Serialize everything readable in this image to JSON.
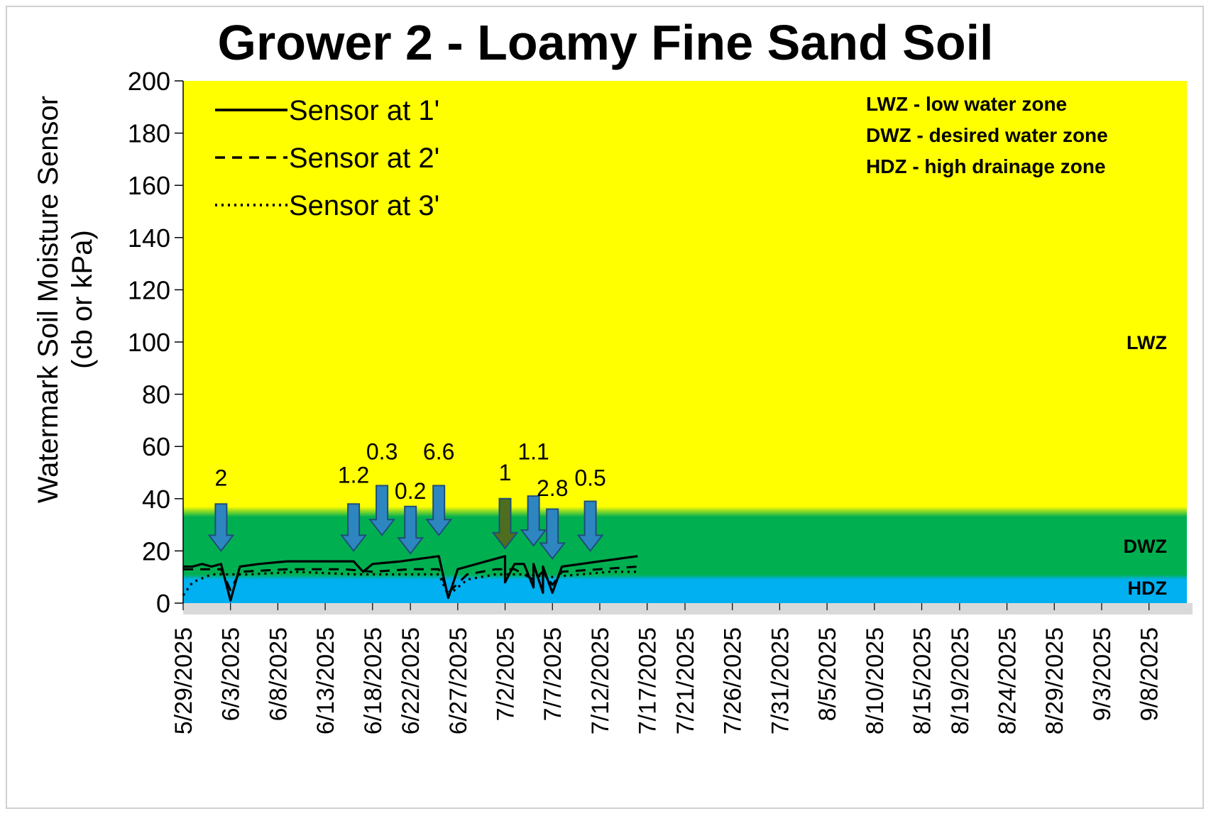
{
  "chart_data": {
    "type": "line",
    "title": "Grower 2 - Loamy Fine Sand Soil",
    "ylabel": "Watermark Soil Moisture Sensor\n(cb or kPa)",
    "ylim": [
      0,
      200
    ],
    "yticks": [
      0,
      20,
      40,
      60,
      80,
      100,
      120,
      140,
      160,
      180,
      200
    ],
    "xlim": [
      "5/29/2025",
      "9/12/2025"
    ],
    "xticks": [
      "5/29/2025",
      "6/3/2025",
      "6/8/2025",
      "6/13/2025",
      "6/18/2025",
      "6/22/2025",
      "6/27/2025",
      "7/2/2025",
      "7/7/2025",
      "7/12/2025",
      "7/17/2025",
      "7/21/2025",
      "7/26/2025",
      "7/31/2025",
      "8/5/2025",
      "8/10/2025",
      "8/15/2025",
      "8/19/2025",
      "8/24/2025",
      "8/29/2025",
      "9/3/2025",
      "9/8/2025"
    ],
    "zones": [
      {
        "name": "HDZ",
        "from": 0,
        "to": 10,
        "color": "#00b0f0"
      },
      {
        "name": "DWZ",
        "from": 10,
        "to": 35,
        "color": "#00b050"
      },
      {
        "name": "LWZ",
        "from": 35,
        "to": 200,
        "color": "#ffff00"
      }
    ],
    "zone_labels": [
      "LWZ",
      "DWZ",
      "HDZ"
    ],
    "zone_notes": [
      "LWZ  - low water zone",
      "DWZ - desired water zone",
      "HDZ - high drainage zone"
    ],
    "legend_position": "top-left",
    "series": [
      {
        "name": "Sensor at 1'",
        "style": "solid",
        "points": [
          [
            "5/29/2025",
            14
          ],
          [
            "5/30/2025",
            14
          ],
          [
            "5/31/2025",
            15
          ],
          [
            "6/1/2025",
            14
          ],
          [
            "6/2/2025",
            15
          ],
          [
            "6/3/2025",
            1
          ],
          [
            "6/4/2025",
            14
          ],
          [
            "6/6/2025",
            15
          ],
          [
            "6/9/2025",
            16
          ],
          [
            "6/13/2025",
            16
          ],
          [
            "6/16/2025",
            16
          ],
          [
            "6/17/2025",
            12
          ],
          [
            "6/18/2025",
            15
          ],
          [
            "6/21/2025",
            16
          ],
          [
            "6/23/2025",
            17
          ],
          [
            "6/25/2025",
            18
          ],
          [
            "6/26/2025",
            2
          ],
          [
            "6/27/2025",
            13
          ],
          [
            "6/28/2025",
            14
          ],
          [
            "6/30/2025",
            16
          ],
          [
            "7/1/2025",
            17
          ],
          [
            "7/2/2025",
            18
          ],
          [
            "7/2/2025",
            8
          ],
          [
            "7/3/2025",
            15
          ],
          [
            "7/4/2025",
            15
          ],
          [
            "7/5/2025",
            6
          ],
          [
            "7/5/2025",
            15
          ],
          [
            "7/6/2025",
            4
          ],
          [
            "7/6/2025",
            14
          ],
          [
            "7/7/2025",
            4
          ],
          [
            "7/8/2025",
            14
          ],
          [
            "7/10/2025",
            15
          ],
          [
            "7/12/2025",
            16
          ],
          [
            "7/14/2025",
            17
          ],
          [
            "7/16/2025",
            18
          ]
        ]
      },
      {
        "name": "Sensor at 2'",
        "style": "dashed",
        "points": [
          [
            "5/29/2025",
            13
          ],
          [
            "6/2/2025",
            13
          ],
          [
            "6/3/2025",
            5
          ],
          [
            "6/4/2025",
            12
          ],
          [
            "6/9/2025",
            13
          ],
          [
            "6/15/2025",
            13
          ],
          [
            "6/18/2025",
            12
          ],
          [
            "6/22/2025",
            13
          ],
          [
            "6/25/2025",
            13
          ],
          [
            "6/26/2025",
            4
          ],
          [
            "6/28/2025",
            11
          ],
          [
            "7/1/2025",
            13
          ],
          [
            "7/3/2025",
            13
          ],
          [
            "7/5/2025",
            9
          ],
          [
            "7/6/2025",
            12
          ],
          [
            "7/7/2025",
            7
          ],
          [
            "7/8/2025",
            12
          ],
          [
            "7/12/2025",
            13
          ],
          [
            "7/16/2025",
            14
          ]
        ]
      },
      {
        "name": "Sensor at 3'",
        "style": "dotted",
        "points": [
          [
            "5/29/2025",
            3
          ],
          [
            "5/30/2025",
            8
          ],
          [
            "6/1/2025",
            11
          ],
          [
            "6/3/2025",
            11
          ],
          [
            "6/5/2025",
            11
          ],
          [
            "6/10/2025",
            12
          ],
          [
            "6/16/2025",
            11
          ],
          [
            "6/20/2025",
            11
          ],
          [
            "6/25/2025",
            11
          ],
          [
            "6/26/2025",
            3
          ],
          [
            "6/28/2025",
            9
          ],
          [
            "7/1/2025",
            11
          ],
          [
            "7/4/2025",
            11
          ],
          [
            "7/7/2025",
            10
          ],
          [
            "7/10/2025",
            11
          ],
          [
            "7/13/2025",
            12
          ],
          [
            "7/16/2025",
            12
          ]
        ]
      }
    ],
    "annotations": [
      {
        "label": "2",
        "date": "6/2/2025",
        "arrow_top": 38,
        "arrow_bottom": 20,
        "label_y": 45,
        "color": "#2e86c1"
      },
      {
        "label": "1.2",
        "date": "6/16/2025",
        "arrow_top": 38,
        "arrow_bottom": 20,
        "label_y": 46,
        "color": "#2e86c1"
      },
      {
        "label": "0.3",
        "date": "6/19/2025",
        "arrow_top": 45,
        "arrow_bottom": 26,
        "label_y": 55,
        "color": "#2e86c1"
      },
      {
        "label": "0.2",
        "date": "6/22/2025",
        "arrow_top": 37,
        "arrow_bottom": 19,
        "label_y": 40,
        "color": "#2e86c1"
      },
      {
        "label": "6.6",
        "date": "6/25/2025",
        "arrow_top": 45,
        "arrow_bottom": 26,
        "label_y": 55,
        "color": "#2e86c1"
      },
      {
        "label": "1",
        "date": "7/2/2025",
        "arrow_top": 40,
        "arrow_bottom": 21,
        "label_y": 47,
        "color": "#4f6d1e"
      },
      {
        "label": "1.1",
        "date": "7/5/2025",
        "arrow_top": 41,
        "arrow_bottom": 22,
        "label_y": 55,
        "color": "#2e86c1"
      },
      {
        "label": "2.8",
        "date": "7/7/2025",
        "arrow_top": 36,
        "arrow_bottom": 17,
        "label_y": 41,
        "color": "#2e86c1"
      },
      {
        "label": "0.5",
        "date": "7/11/2025",
        "arrow_top": 39,
        "arrow_bottom": 20,
        "label_y": 45,
        "color": "#2e86c1"
      }
    ]
  }
}
